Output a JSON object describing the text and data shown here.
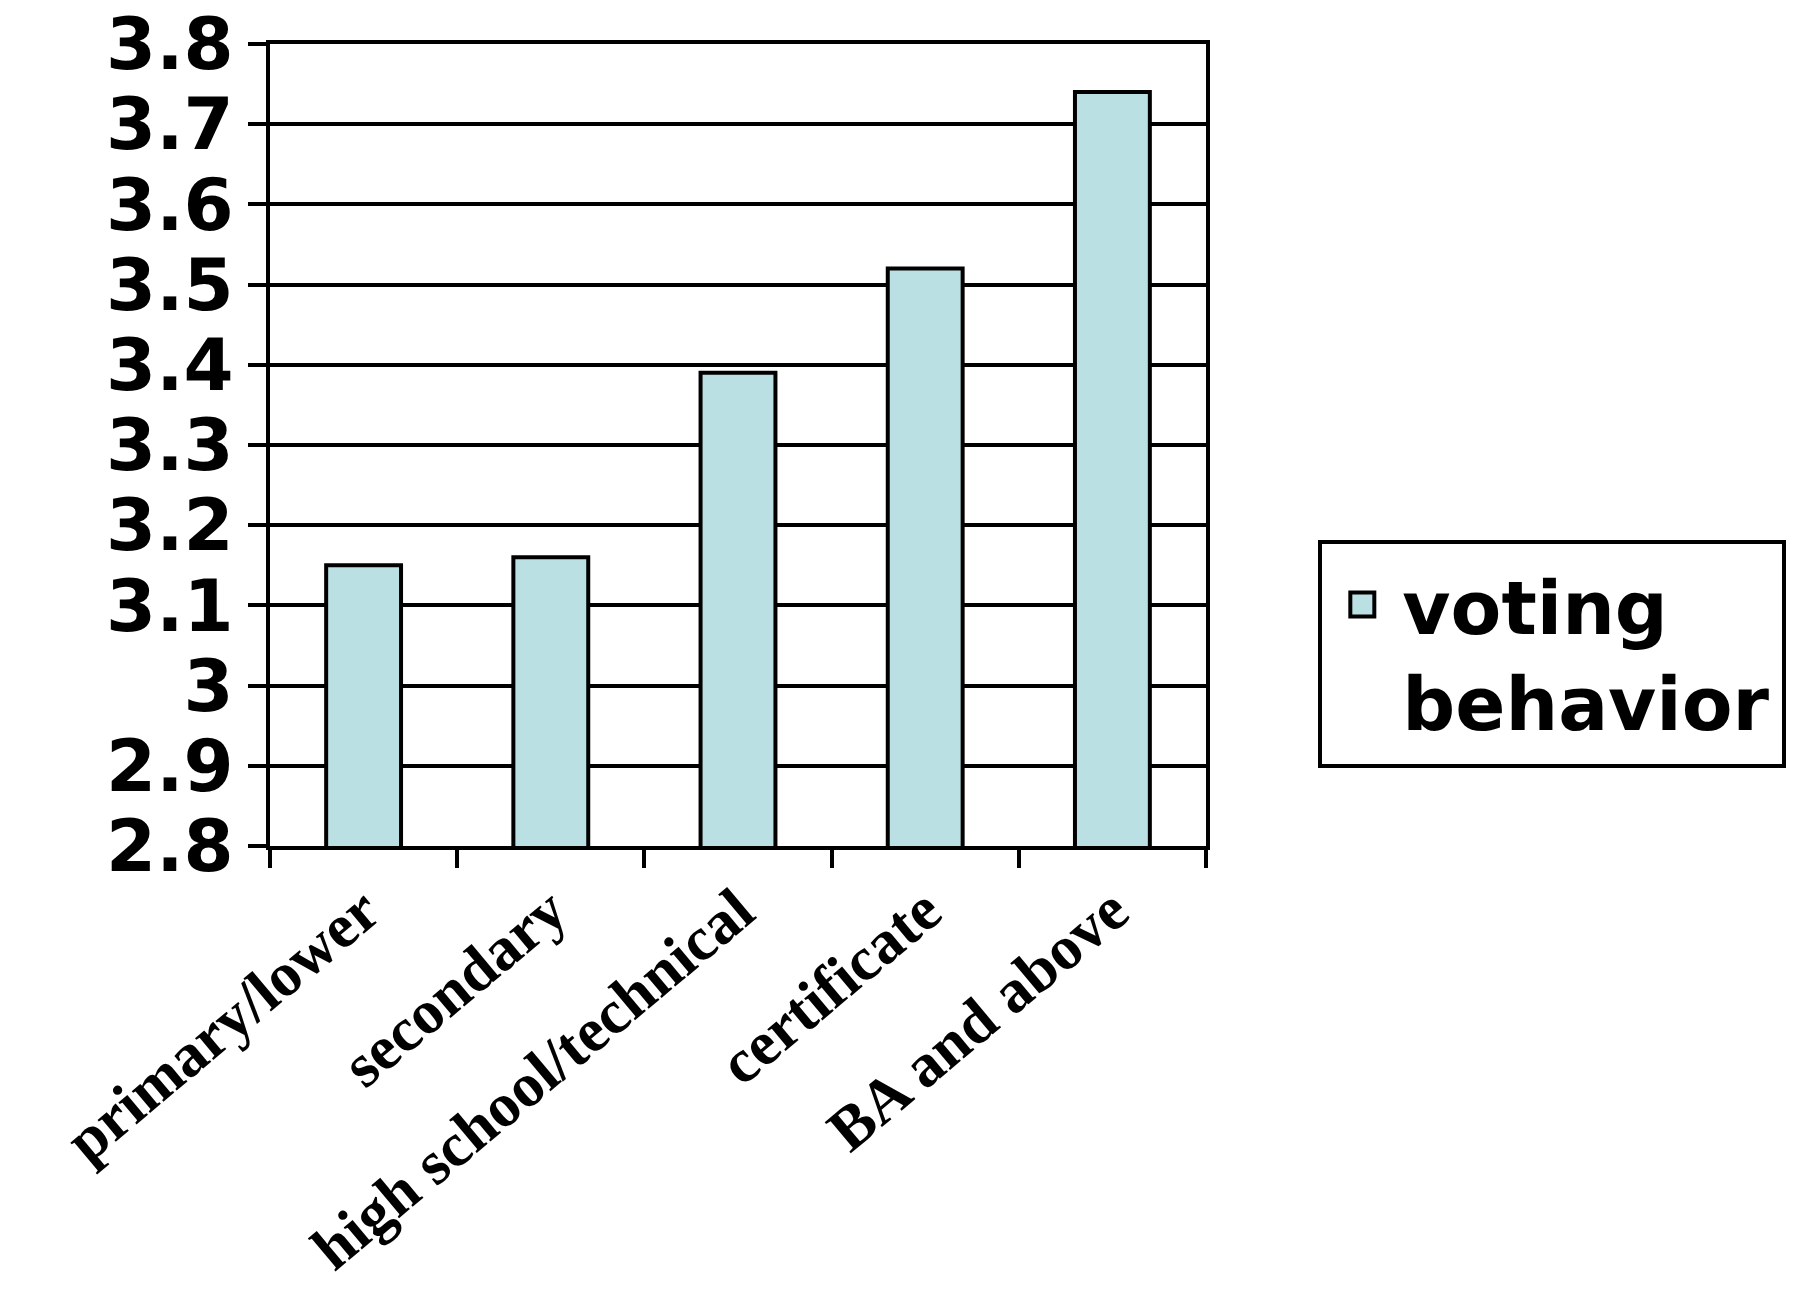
{
  "chart_data": {
    "type": "bar",
    "categories": [
      "primary/lower",
      "secondary",
      "high school/technical",
      "certificate",
      "BA and above"
    ],
    "series": [
      {
        "name": "voting behavior",
        "color": "#bbe0e3",
        "values": [
          3.15,
          3.16,
          3.39,
          3.52,
          3.74
        ]
      }
    ],
    "ylim": [
      2.8,
      3.8
    ],
    "yticks": [
      2.8,
      2.9,
      3,
      3.1,
      3.2,
      3.3,
      3.4,
      3.5,
      3.6,
      3.7,
      3.8
    ],
    "grid": "y",
    "legend": "right"
  }
}
